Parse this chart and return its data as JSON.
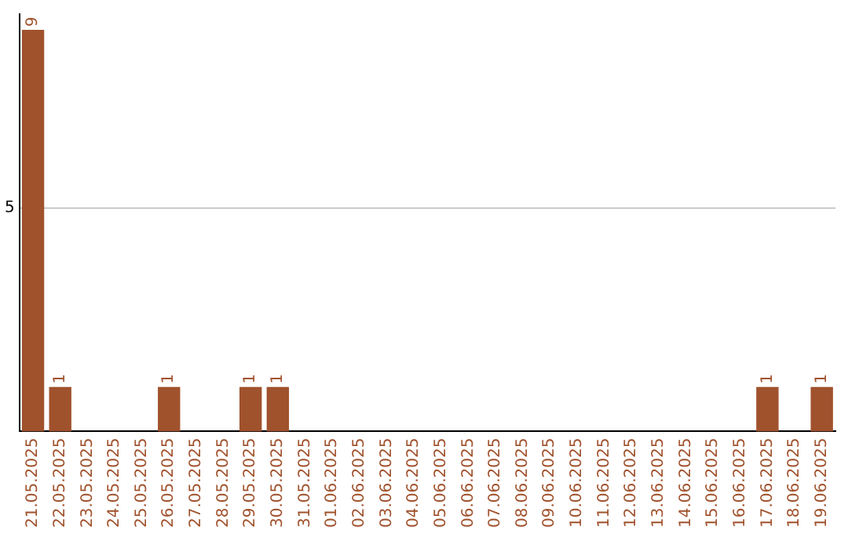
{
  "chart_data": {
    "type": "bar",
    "categories": [
      "21.05.2025",
      "22.05.2025",
      "23.05.2025",
      "24.05.2025",
      "25.05.2025",
      "26.05.2025",
      "27.05.2025",
      "28.05.2025",
      "29.05.2025",
      "30.05.2025",
      "31.05.2025",
      "01.06.2025",
      "02.06.2025",
      "03.06.2025",
      "04.06.2025",
      "05.06.2025",
      "06.06.2025",
      "07.06.2025",
      "08.06.2025",
      "09.06.2025",
      "10.06.2025",
      "11.06.2025",
      "12.06.2025",
      "13.06.2025",
      "14.06.2025",
      "15.06.2025",
      "16.06.2025",
      "17.06.2025",
      "18.06.2025",
      "19.06.2025"
    ],
    "series": [
      {
        "color": "#a0522d",
        "values": [
          9,
          1,
          0,
          0,
          0,
          1,
          0,
          0,
          1,
          1,
          0,
          0,
          0,
          0,
          0,
          0,
          0,
          0,
          0,
          0,
          0,
          0,
          0,
          0,
          0,
          0,
          0,
          1,
          0,
          1
        ],
        "value_labels": [
          "9",
          "1",
          null,
          null,
          null,
          "1",
          null,
          null,
          "1",
          "1",
          null,
          null,
          null,
          null,
          null,
          null,
          null,
          null,
          null,
          null,
          null,
          null,
          null,
          null,
          null,
          null,
          null,
          "1",
          null,
          "1"
        ]
      }
    ],
    "ylim": [
      0,
      9.35
    ],
    "yticks": [
      5
    ],
    "grid": "y",
    "legend": false
  }
}
